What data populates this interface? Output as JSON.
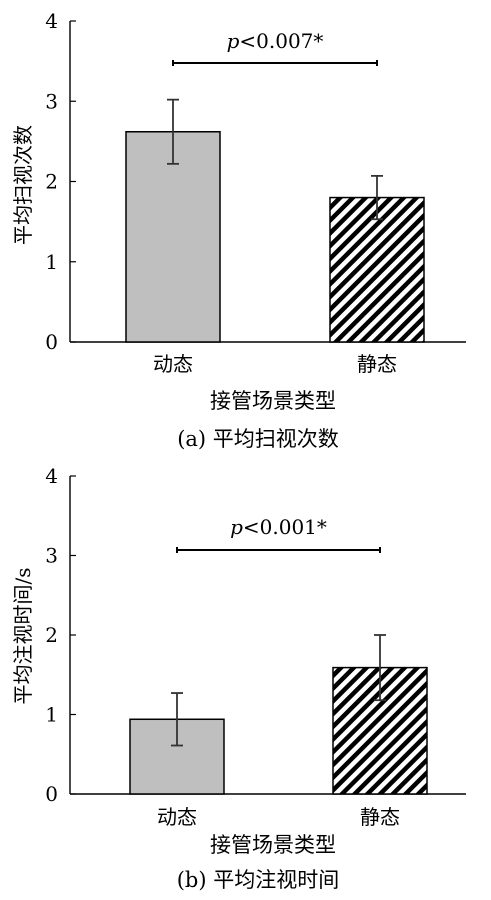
{
  "chart_data": [
    {
      "type": "bar",
      "categories": [
        "动态",
        "静态"
      ],
      "values": [
        2.62,
        1.8
      ],
      "error_bars": [
        0.4,
        0.27
      ],
      "ylabel": "平均扫视次数",
      "xlabel": "接管场景类型",
      "caption": "(a) 平均扫视次数",
      "ylim": [
        0,
        4
      ],
      "yticks": [
        "0",
        "1",
        "2",
        "3",
        "4"
      ],
      "significance": {
        "p_italic": "p",
        "text": "<0.007*"
      },
      "bar_styles": [
        "solid-gray",
        "diagonal-hatch"
      ],
      "colors": {
        "gray_fill": "#bfbfbf",
        "hatch": "#000000"
      }
    },
    {
      "type": "bar",
      "categories": [
        "动态",
        "静态"
      ],
      "values": [
        0.94,
        1.59
      ],
      "error_bars": [
        0.33,
        0.41
      ],
      "ylabel": "平均注视时间/s",
      "xlabel": "接管场景类型",
      "caption": "(b) 平均注视时间",
      "ylim": [
        0,
        4
      ],
      "yticks": [
        "0",
        "1",
        "2",
        "3",
        "4"
      ],
      "significance": {
        "p_italic": "p",
        "text": "<0.001*"
      },
      "bar_styles": [
        "solid-gray",
        "diagonal-hatch"
      ],
      "colors": {
        "gray_fill": "#bfbfbf",
        "hatch": "#000000"
      }
    }
  ]
}
